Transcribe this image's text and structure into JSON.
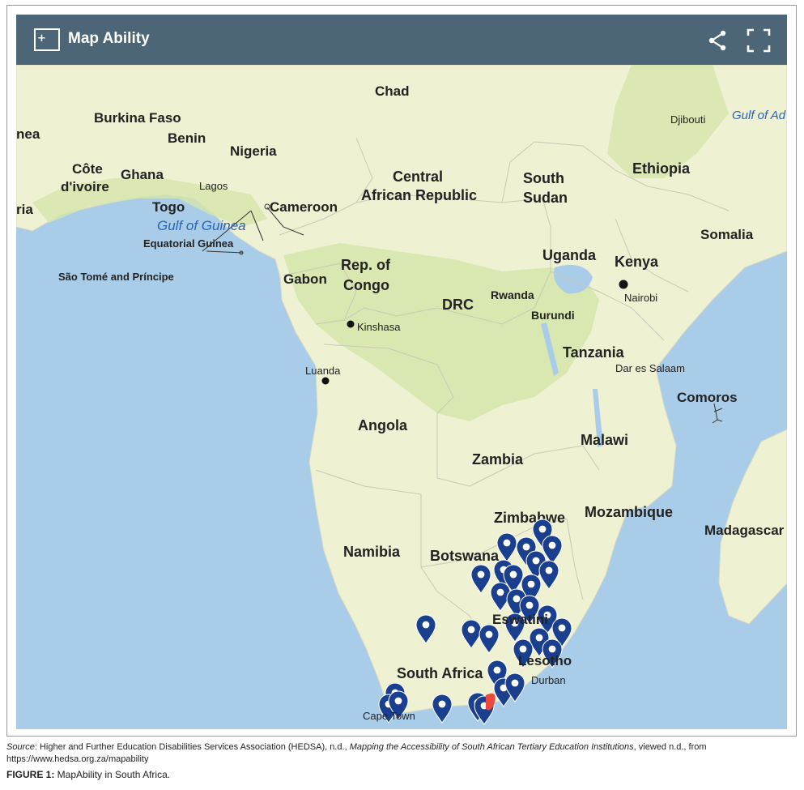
{
  "app": {
    "title": "Map Ability",
    "logo_icon": "plus-square-logo",
    "share_icon": "share-icon",
    "fullscreen_icon": "fullscreen-icon",
    "header_color": "#4c6677"
  },
  "map": {
    "water_color": "#a9cde8",
    "land_color": "#eef1d2",
    "green_land_color": "#d6e6ad",
    "marker_color": "#1b3f8f",
    "selected_marker_color": "#e84a3f",
    "labels": {
      "chad": "Chad",
      "burkina_faso": "Burkina Faso",
      "guinea_partial": "nea",
      "benin": "Benin",
      "nigeria": "Nigeria",
      "djibouti": "Djibouti",
      "gulf_of_aden": "Gulf of Ad",
      "cote_divoire_1": "Côte",
      "cote_divoire_2": "d'ivoire",
      "ghana": "Ghana",
      "lagos": "Lagos",
      "central_african_republic_1": "Central",
      "central_african_republic_2": "African Republic",
      "south_sudan_1": "South",
      "south_sudan_2": "Sudan",
      "ethiopia": "Ethiopia",
      "liberia_partial": "ria",
      "togo": "Togo",
      "cameroon": "Cameroon",
      "gulf_of_guinea": "Gulf of Guinea",
      "somalia": "Somalia",
      "equatorial_guinea": "Equatorial Guinea",
      "uganda": "Uganda",
      "kenya": "Kenya",
      "sao_tome": "São Tomé and Príncipe",
      "gabon": "Gabon",
      "rep_of_congo_1": "Rep. of",
      "rep_of_congo_2": "Congo",
      "drc": "DRC",
      "rwanda": "Rwanda",
      "nairobi": "Nairobi",
      "burundi": "Burundi",
      "kinshasa": "Kinshasa",
      "tanzania": "Tanzania",
      "luanda": "Luanda",
      "dar_es_salaam": "Dar es Salaam",
      "comoros": "Comoros",
      "angola": "Angola",
      "malawi": "Malawi",
      "zambia": "Zambia",
      "zimbabwe": "Zimbabwe",
      "mozambique": "Mozambique",
      "madagascar": "Madagascar",
      "namibia": "Namibia",
      "botswana": "Botswana",
      "eswatini": "Eswatini",
      "lesotho": "Lesotho",
      "south_africa": "South Africa",
      "durban": "Durban",
      "cape_town": "Cape Town"
    }
  },
  "caption": {
    "source_label": "Source",
    "source_text_1": ": Higher and Further Education Disabilities Services Association (HEDSA), n.d., ",
    "source_title": "Mapping the Accessibility of South African Tertiary Education Institutions",
    "source_text_2": ", viewed n.d., from https://www.hedsa.org.za/mapability",
    "figure_label": "FIGURE 1:",
    "figure_text": " MapAbility in South Africa."
  }
}
